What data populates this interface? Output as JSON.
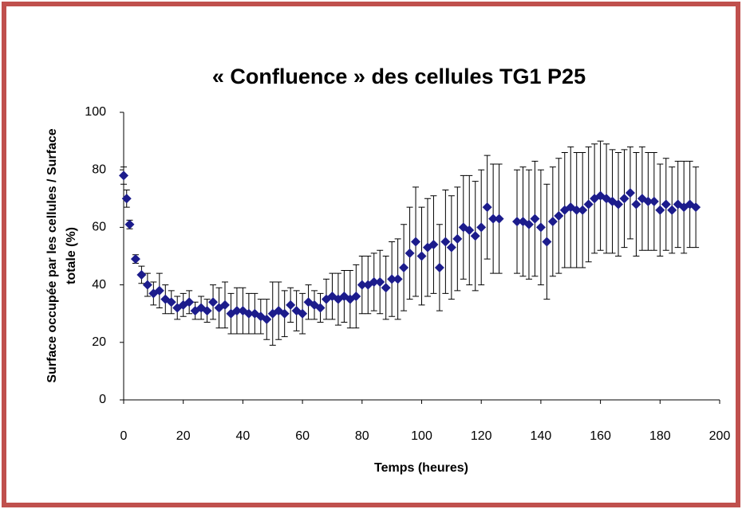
{
  "chart_data": {
    "type": "scatter",
    "title": "« Confluence » des cellules TG1  P25",
    "xlabel": "Temps (heures)",
    "ylabel": [
      "Surface occupée par les cellules / Surface",
      "totale (%)"
    ],
    "xlim": [
      0,
      200
    ],
    "xticks": [
      0,
      20,
      40,
      60,
      80,
      100,
      120,
      140,
      160,
      180,
      200
    ],
    "ylim": [
      0,
      100
    ],
    "yticks": [
      0,
      20,
      40,
      60,
      80,
      100
    ],
    "grid": false,
    "series": [
      {
        "color": "#1c1c8c",
        "x": [
          0,
          1,
          2,
          4,
          6,
          8,
          10,
          12,
          14,
          16,
          18,
          20,
          22,
          24,
          26,
          28,
          30,
          32,
          34,
          36,
          38,
          40,
          42,
          44,
          46,
          48,
          50,
          52,
          54,
          56,
          58,
          60,
          62,
          64,
          66,
          68,
          70,
          72,
          74,
          76,
          78,
          80,
          82,
          84,
          86,
          88,
          90,
          92,
          94,
          96,
          98,
          100,
          102,
          104,
          106,
          108,
          110,
          112,
          114,
          116,
          118,
          120,
          122,
          124,
          126,
          132,
          134,
          136,
          138,
          140,
          142,
          144,
          146,
          148,
          150,
          152,
          154,
          156,
          158,
          160,
          162,
          164,
          166,
          168,
          170,
          172,
          174,
          176,
          178,
          180,
          182,
          184,
          186,
          188,
          190,
          192
        ],
        "values": [
          78,
          70,
          61,
          49,
          43.5,
          40,
          37,
          38,
          35,
          34,
          32,
          33,
          34,
          31,
          32,
          31,
          34,
          32,
          33,
          30,
          31,
          31,
          30,
          30,
          29,
          28,
          30,
          31,
          30,
          33,
          31,
          30,
          34,
          33,
          32,
          35,
          36,
          35,
          36,
          35,
          36,
          40,
          40,
          41,
          41,
          39,
          42,
          42,
          46,
          51,
          55,
          50,
          53,
          54,
          46,
          55,
          53,
          56,
          60,
          59,
          57,
          60,
          67,
          63,
          63,
          62,
          62,
          61,
          63,
          60,
          55,
          62,
          64,
          66,
          67,
          66,
          66,
          68,
          70,
          71,
          70,
          69,
          68,
          70,
          72,
          68,
          70,
          69,
          69,
          66,
          68,
          66,
          68,
          67,
          68,
          67
        ],
        "errors": [
          3,
          3,
          1.5,
          1.5,
          3,
          4,
          4,
          6,
          5,
          4,
          4,
          4,
          4,
          3,
          4,
          4,
          6,
          7,
          8,
          7,
          8,
          8,
          7,
          7,
          6,
          7,
          11,
          10,
          8,
          6,
          7,
          7,
          6,
          5,
          5,
          7,
          8,
          9,
          9,
          10,
          11,
          10,
          10,
          10,
          11,
          11,
          13,
          14,
          15,
          16,
          19,
          17,
          17,
          17,
          15,
          18,
          18,
          18,
          18,
          19,
          19,
          20,
          18,
          19,
          19,
          18,
          19,
          19,
          20,
          20,
          20,
          19,
          20,
          20,
          21,
          20,
          20,
          20,
          19,
          19,
          19,
          18,
          18,
          17,
          16,
          18,
          18,
          17,
          17,
          16,
          16,
          15,
          15,
          16,
          15,
          14
        ]
      }
    ]
  }
}
